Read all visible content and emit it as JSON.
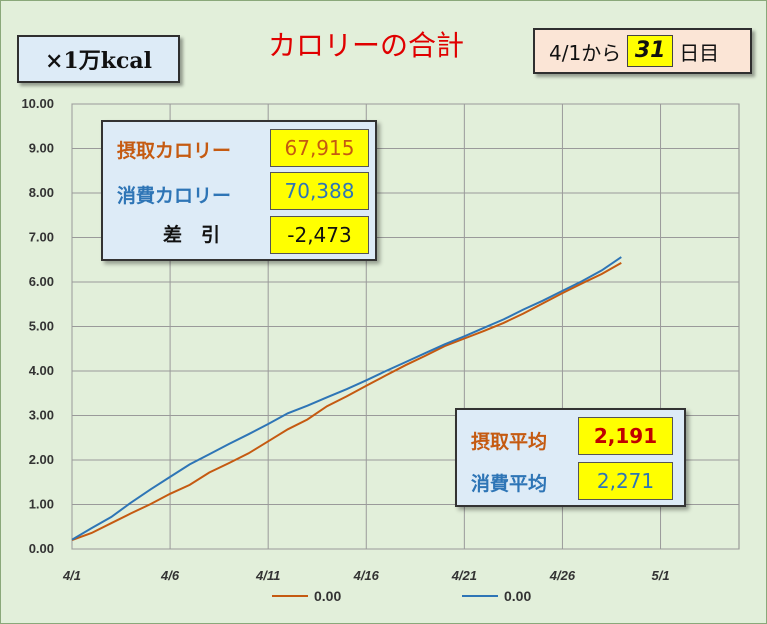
{
  "unit_label": "×1万kcal",
  "title": "カロリーの合計",
  "day_counter": {
    "prefix": "4/1から",
    "value": "31",
    "suffix": "日目"
  },
  "summary": {
    "intake_label": "摂取カロリー",
    "intake_value": "67,915",
    "burn_label": "消費カロリー",
    "burn_value": "70,388",
    "diff_label": "差　引",
    "diff_value": "-2,473"
  },
  "averages": {
    "intake_avg_label": "摂取平均",
    "intake_avg_value": "2,191",
    "burn_avg_label": "消費平均",
    "burn_avg_value": "2,271"
  },
  "colors": {
    "intake": "#c55a11",
    "burn": "#2e75b6",
    "title": "#e00000",
    "diff_label": "#111111",
    "intake_avg_value": "#c00000",
    "burn_avg_value": "#2e75b6"
  },
  "chart_data": {
    "type": "line",
    "x_tick_labels": [
      "4/1",
      "4/6",
      "4/11",
      "4/16",
      "4/21",
      "4/26",
      "5/1"
    ],
    "x_day_range": [
      1,
      31
    ],
    "ylim": [
      0,
      10
    ],
    "y_tick_labels": [
      "0.00",
      "1.00",
      "2.00",
      "3.00",
      "4.00",
      "5.00",
      "6.00",
      "7.00",
      "8.00",
      "9.00",
      "10.00"
    ],
    "grid": true,
    "legend_position": "bottom",
    "series": [
      {
        "legend_label": "0.00",
        "color": "#c55a11",
        "x": [
          1,
          2,
          3,
          4,
          5,
          6,
          7,
          8,
          9,
          10,
          11,
          12,
          13,
          14,
          15,
          16,
          17,
          18,
          19,
          20,
          21,
          22,
          23,
          24,
          25,
          26,
          27,
          28,
          29
        ],
        "values": [
          0.2,
          0.36,
          0.58,
          0.8,
          1.01,
          1.24,
          1.44,
          1.72,
          1.93,
          2.15,
          2.42,
          2.69,
          2.91,
          3.21,
          3.43,
          3.67,
          3.9,
          4.13,
          4.34,
          4.56,
          4.73,
          4.9,
          5.08,
          5.29,
          5.52,
          5.75,
          5.97,
          6.18,
          6.43
        ]
      },
      {
        "legend_label": "0.00",
        "color": "#2e75b6",
        "x": [
          1,
          2,
          3,
          4,
          5,
          6,
          7,
          8,
          9,
          10,
          11,
          12,
          13,
          14,
          15,
          16,
          17,
          18,
          19,
          20,
          21,
          22,
          23,
          24,
          25,
          26,
          27,
          28,
          29
        ],
        "values": [
          0.21,
          0.47,
          0.72,
          1.04,
          1.34,
          1.62,
          1.9,
          2.13,
          2.36,
          2.58,
          2.81,
          3.05,
          3.22,
          3.41,
          3.59,
          3.79,
          4.0,
          4.2,
          4.4,
          4.6,
          4.78,
          4.97,
          5.16,
          5.38,
          5.58,
          5.8,
          6.02,
          6.26,
          6.56
        ]
      }
    ]
  }
}
